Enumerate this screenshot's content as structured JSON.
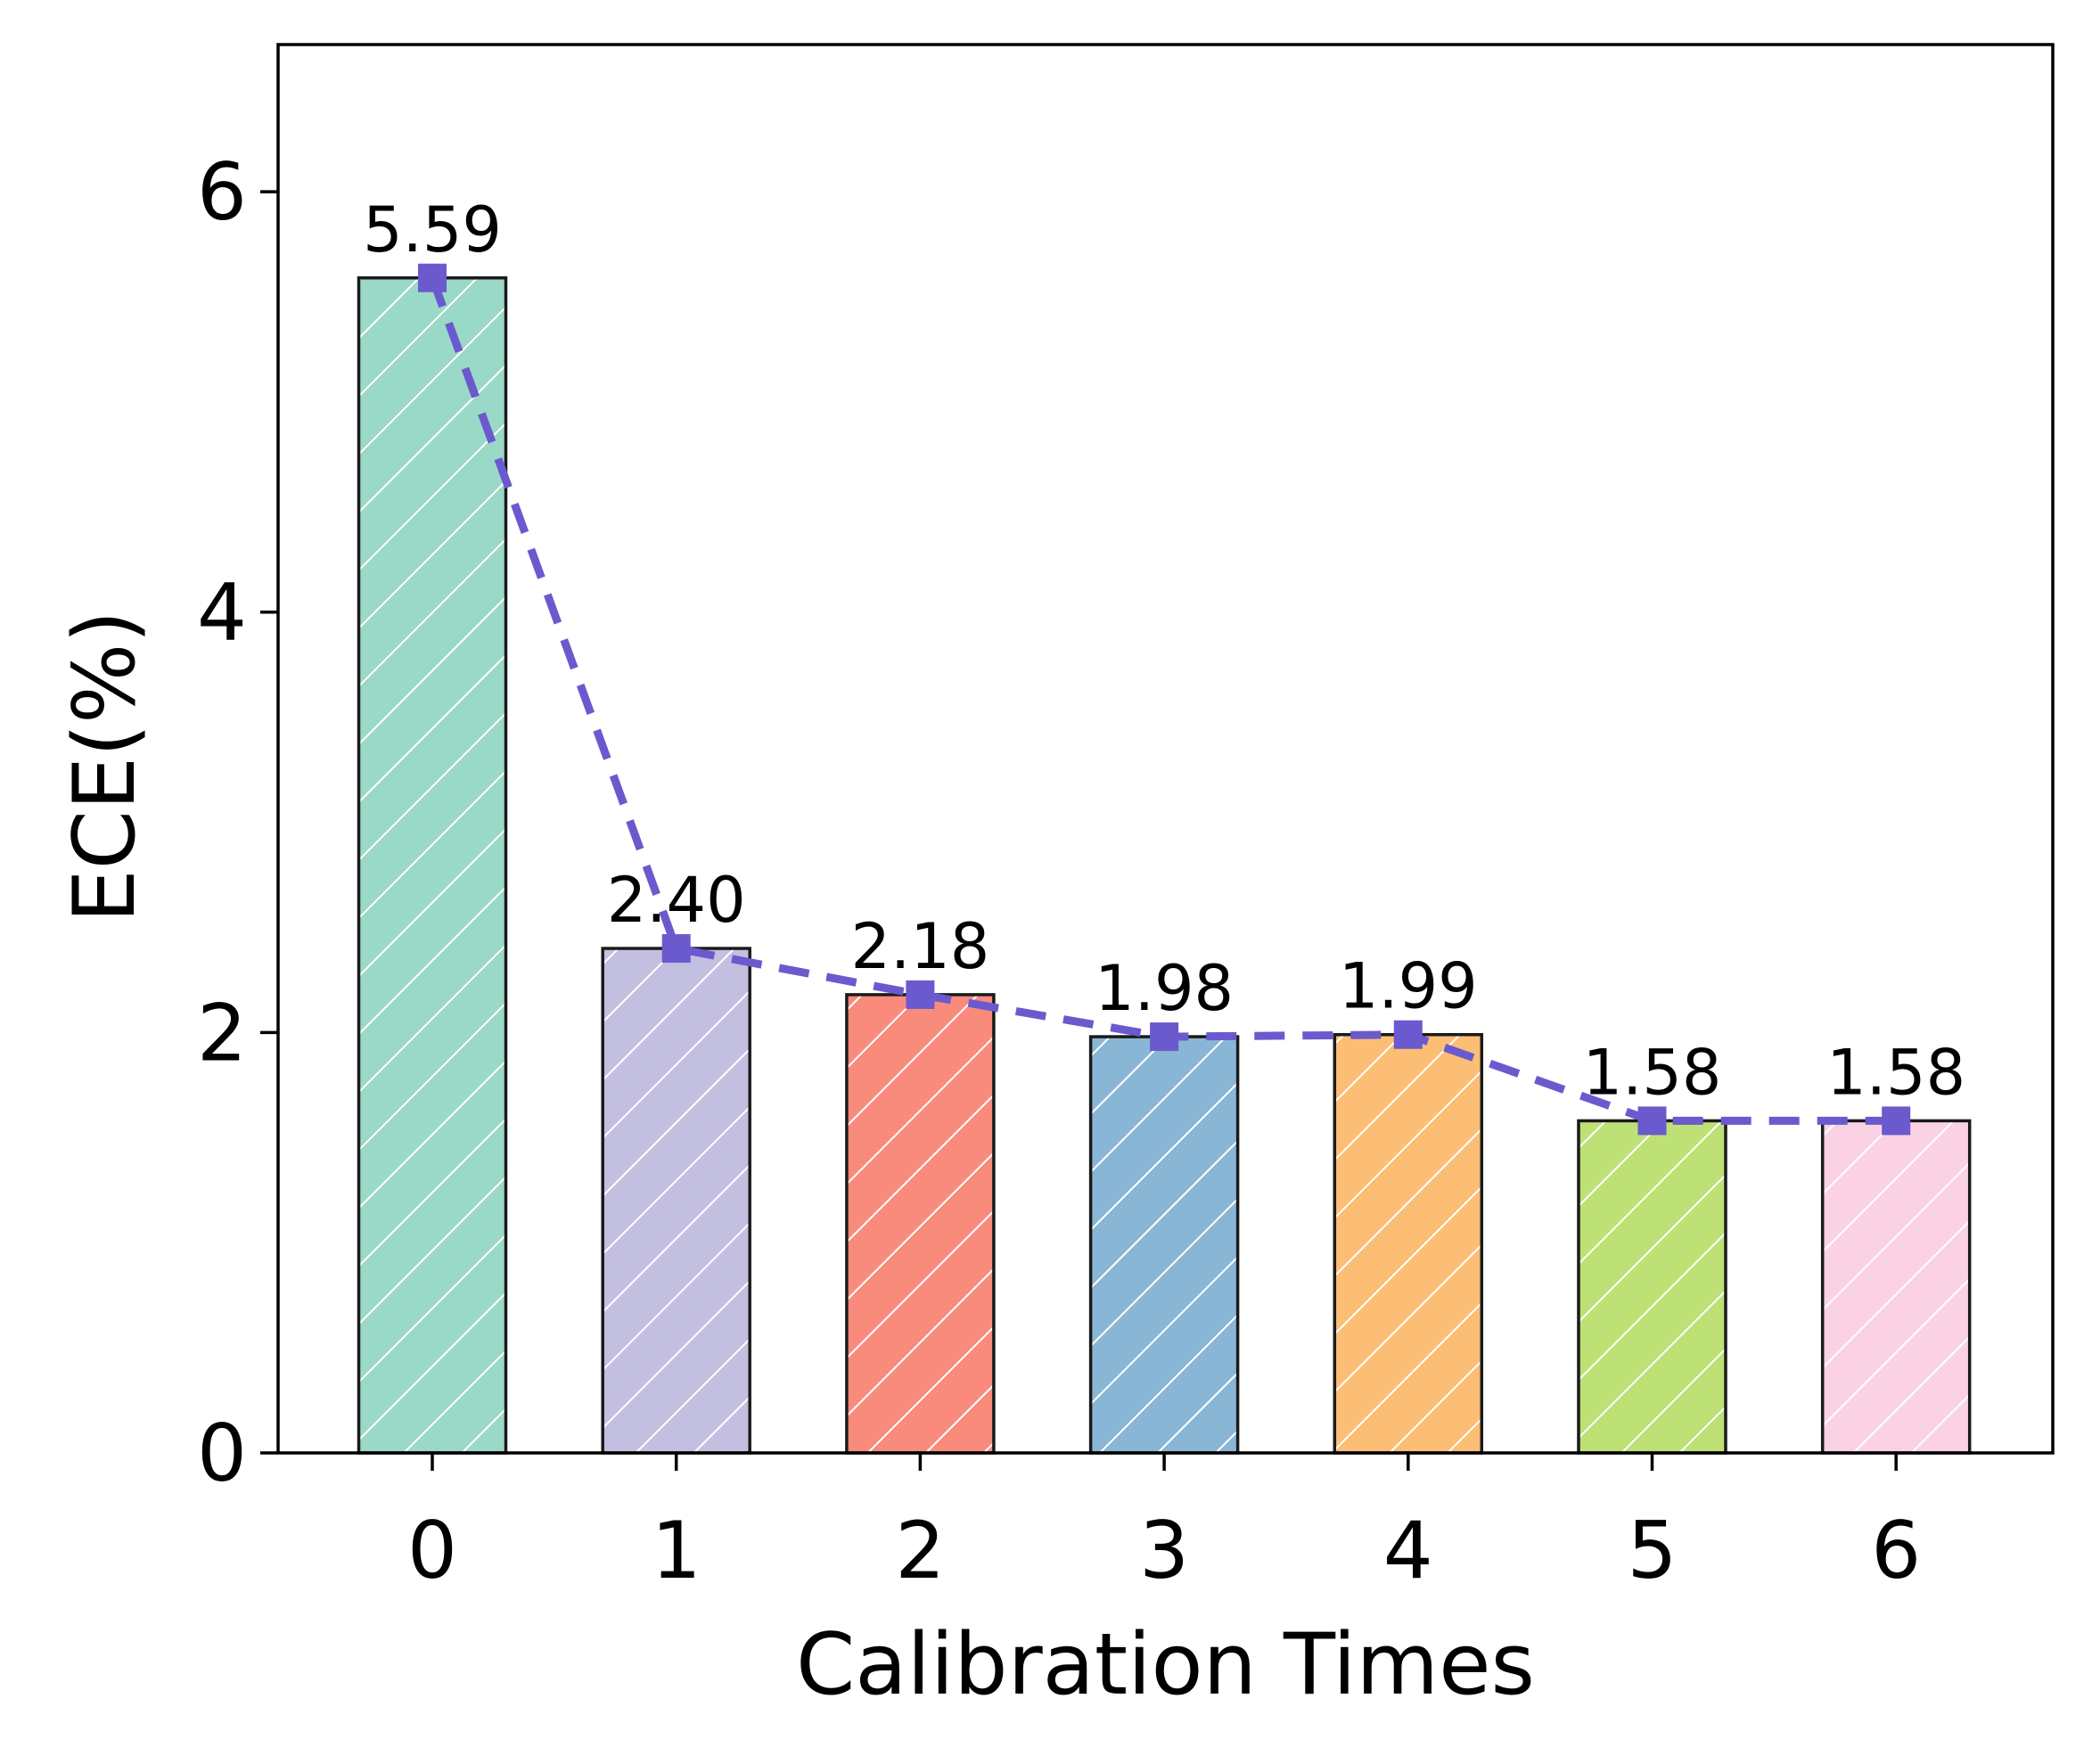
{
  "chart_data": {
    "type": "bar",
    "title": "",
    "xlabel": "Calibration Times",
    "ylabel": "ECE(%)",
    "categories": [
      "0",
      "1",
      "2",
      "3",
      "4",
      "5",
      "6"
    ],
    "values": [
      5.59,
      2.4,
      2.18,
      1.98,
      1.99,
      1.58,
      1.58
    ],
    "value_labels": [
      "5.59",
      "2.40",
      "2.18",
      "1.98",
      "1.99",
      "1.58",
      "1.58"
    ],
    "bar_colors": [
      "#9ad8c8",
      "#c3bfe0",
      "#f98b7c",
      "#8ab6d6",
      "#fbbe74",
      "#bde174",
      "#fad2e4"
    ],
    "hatch": "diagonal-white",
    "line_overlay": {
      "values": [
        5.59,
        2.4,
        2.18,
        1.98,
        1.99,
        1.58,
        1.58
      ],
      "style": "dashed",
      "marker": "square",
      "color": "#6a5acd"
    },
    "ylim": [
      0,
      6.7
    ],
    "yticks": [
      0,
      2,
      4,
      6
    ],
    "ytick_labels": [
      "0",
      "2",
      "4",
      "6"
    ],
    "grid": false,
    "legend": "none"
  }
}
